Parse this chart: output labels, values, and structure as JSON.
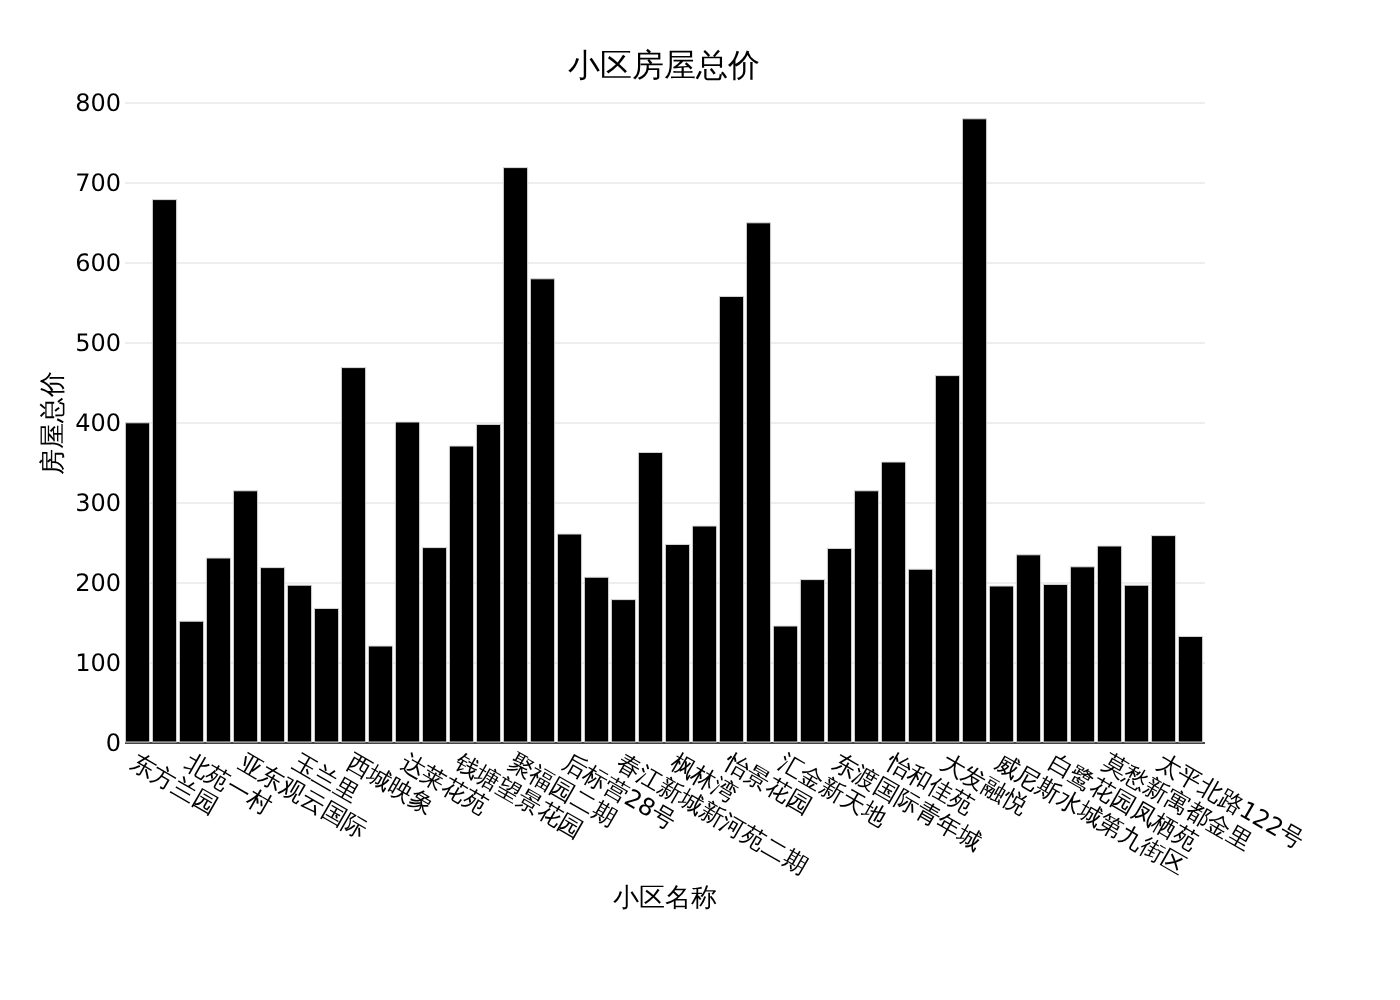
{
  "chart_data": {
    "type": "bar",
    "title": "小区房屋总价",
    "xlabel": "小区名称",
    "ylabel": "房屋总价",
    "categories": [
      "东方兰园",
      null,
      "北苑一村",
      null,
      "亚东观云国际",
      null,
      "玉兰里",
      null,
      "西城映象",
      null,
      "达莱花苑",
      null,
      "钱塘望景花园",
      null,
      "聚福园二期",
      null,
      "后标营28号",
      null,
      "春江新城新河苑二期",
      null,
      "枫林湾",
      null,
      "怡景花园",
      null,
      "汇金新天地",
      null,
      "东渡国际青年城",
      null,
      "怡和佳苑",
      null,
      "大发融悦",
      null,
      "威尼斯水城第九街区",
      null,
      "白鹭花园凤栖苑",
      null,
      "莫愁新寓都金里",
      null,
      "太平北路122号",
      null
    ],
    "values": [
      399,
      678,
      151,
      230,
      314,
      218,
      196,
      167,
      468,
      120,
      400,
      243,
      370,
      397,
      718,
      579,
      260,
      206,
      178,
      362,
      247,
      270,
      557,
      649,
      145,
      203,
      242,
      314,
      350,
      216,
      458,
      779,
      195,
      234,
      197,
      219,
      245,
      196,
      258,
      132
    ],
    "color": "#000000",
    "ylim": [
      0,
      800
    ],
    "yticks": [
      0,
      100,
      200,
      300,
      400,
      500,
      600,
      700,
      800
    ],
    "grid": "y"
  }
}
